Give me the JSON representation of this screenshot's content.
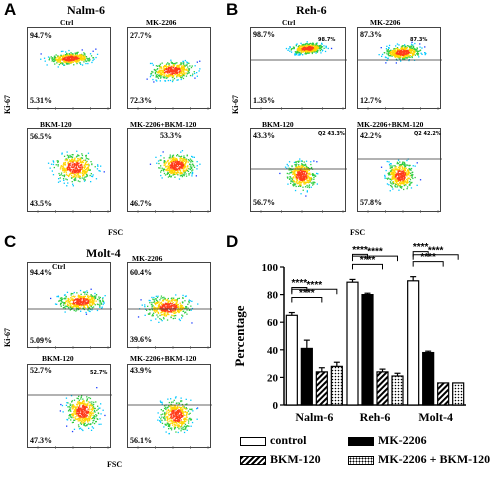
{
  "panels": {
    "A": {
      "letter": "A",
      "title": "Nalm-6",
      "ylabel": "Ki-67",
      "xlabel": "FSC",
      "quadrants": [
        {
          "condition": "Ctrl",
          "upper": "94.7%",
          "lower": "5.31%"
        },
        {
          "condition": "MK-2206",
          "upper": "27.7%",
          "lower": "72.3%"
        },
        {
          "condition": "BKM-120",
          "upper": "56.5%",
          "lower": "43.5%"
        },
        {
          "condition": "MK-2206+BKM-120",
          "upper": "53.3%",
          "lower": "46.7%"
        }
      ]
    },
    "B": {
      "letter": "B",
      "title": "Reh-6",
      "ylabel": "Ki-67",
      "xlabel": "FSC",
      "quadrants": [
        {
          "condition": "Ctrl",
          "upper": "98.7%",
          "lower": "1.35%",
          "gate_label": "98.7%"
        },
        {
          "condition": "MK-2206",
          "upper": "87.3%",
          "lower": "12.7%",
          "gate_label": "87.3%"
        },
        {
          "condition": "BKM-120",
          "upper": "43.3%",
          "lower": "56.7%",
          "gate_label": "Q2 43.3%"
        },
        {
          "condition": "MK-2206+BKM-120",
          "upper": "42.2%",
          "lower": "57.8%",
          "gate_label": "Q2 42.2%"
        }
      ]
    },
    "C": {
      "letter": "C",
      "title": "Molt-4",
      "ylabel": "Ki-67",
      "xlabel": "FSC",
      "quadrants": [
        {
          "condition": "Ctrl",
          "upper": "94.4%",
          "lower": "5.09%"
        },
        {
          "condition": "MK-2206",
          "upper": "60.4%",
          "lower": "39.6%"
        },
        {
          "condition": "BKM-120",
          "upper": "52.7%",
          "lower": "47.3%",
          "gate_label": "52.7%"
        },
        {
          "condition": "MK-2206+BKM-120",
          "upper": "43.9%",
          "lower": "56.1%"
        }
      ]
    },
    "D": {
      "letter": "D"
    }
  },
  "chart_data": {
    "type": "bar",
    "ylabel": "Percentage",
    "ylim": [
      0,
      100
    ],
    "yticks": [
      0,
      20,
      40,
      60,
      80,
      100
    ],
    "categories": [
      "Nalm-6",
      "Reh-6",
      "Molt-4"
    ],
    "series": [
      {
        "name": "control",
        "values": [
          65,
          89,
          90
        ],
        "errors": [
          2,
          2,
          3
        ],
        "pattern": "white"
      },
      {
        "name": "MK-2206",
        "values": [
          41,
          80,
          38
        ],
        "errors": [
          6,
          1,
          1
        ],
        "pattern": "black"
      },
      {
        "name": "BKM-120",
        "values": [
          24,
          24,
          16
        ],
        "errors": [
          3,
          2,
          0
        ],
        "pattern": "hatch"
      },
      {
        "name": "MK-2206 + BKM-120",
        "values": [
          28,
          21,
          16
        ],
        "errors": [
          3,
          2,
          0
        ],
        "pattern": "dots"
      }
    ],
    "significance": "****",
    "legend_placement": "bottom",
    "grid": false
  }
}
